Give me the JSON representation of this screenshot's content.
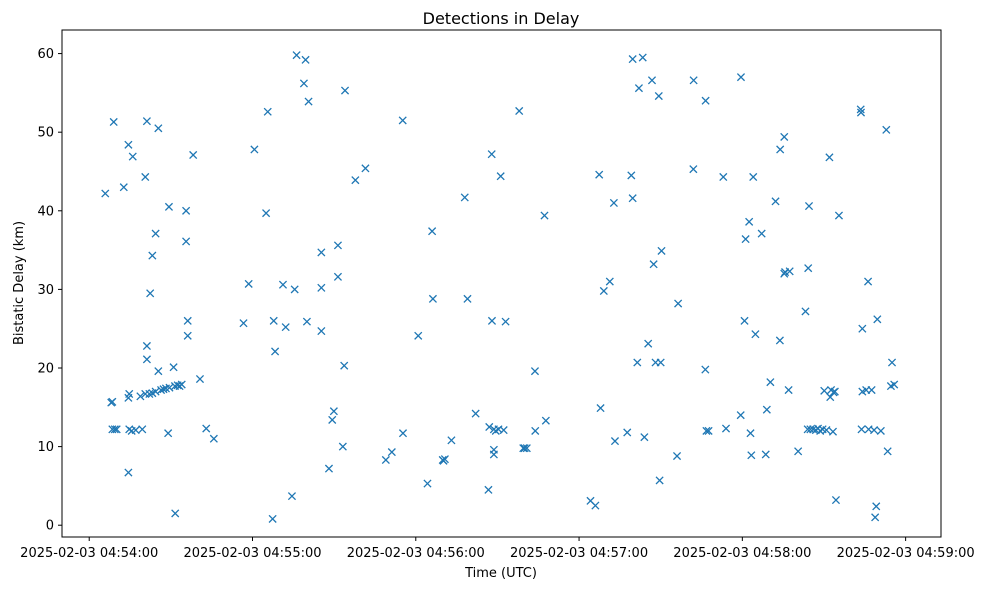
{
  "chart_data": {
    "type": "scatter",
    "title": "Detections in Delay",
    "xlabel": "Time (UTC)",
    "ylabel": "Bistatic Delay (km)",
    "marker": "x",
    "color": "#1f77b4",
    "xlim": [
      -10,
      313
    ],
    "ylim": [
      -1.5,
      63
    ],
    "x_unit": "seconds after 2025-02-03 04:54:00",
    "x_ticks": [
      {
        "value": 0,
        "label": "2025-02-03 04:54:00"
      },
      {
        "value": 60,
        "label": "2025-02-03 04:55:00"
      },
      {
        "value": 120,
        "label": "2025-02-03 04:56:00"
      },
      {
        "value": 180,
        "label": "2025-02-03 04:57:00"
      },
      {
        "value": 240,
        "label": "2025-02-03 04:58:00"
      },
      {
        "value": 300,
        "label": "2025-02-03 04:59:00"
      }
    ],
    "y_ticks": [
      {
        "value": 0,
        "label": "0"
      },
      {
        "value": 10,
        "label": "10"
      },
      {
        "value": 20,
        "label": "20"
      },
      {
        "value": 30,
        "label": "30"
      },
      {
        "value": 40,
        "label": "40"
      },
      {
        "value": 50,
        "label": "50"
      },
      {
        "value": 60,
        "label": "60"
      }
    ],
    "points": [
      [
        5.9,
        42.2
      ],
      [
        8.1,
        15.6
      ],
      [
        8.5,
        15.7
      ],
      [
        8.5,
        12.2
      ],
      [
        9.4,
        12.2
      ],
      [
        10.1,
        12.2
      ],
      [
        9.0,
        51.3
      ],
      [
        12.7,
        43.0
      ],
      [
        14.4,
        6.7
      ],
      [
        14.4,
        48.4
      ],
      [
        14.4,
        16.2
      ],
      [
        14.7,
        16.7
      ],
      [
        14.7,
        12.2
      ],
      [
        15.6,
        12.0
      ],
      [
        16.0,
        46.9
      ],
      [
        17.1,
        12.1
      ],
      [
        18.8,
        16.4
      ],
      [
        19.5,
        12.2
      ],
      [
        20.6,
        16.7
      ],
      [
        21.2,
        51.4
      ],
      [
        20.6,
        44.3
      ],
      [
        21.2,
        22.8
      ],
      [
        21.2,
        21.1
      ],
      [
        22.1,
        16.7
      ],
      [
        22.4,
        29.5
      ],
      [
        23.2,
        34.3
      ],
      [
        23.2,
        16.8
      ],
      [
        24.4,
        17.0
      ],
      [
        24.4,
        37.1
      ],
      [
        25.4,
        19.6
      ],
      [
        25.4,
        50.5
      ],
      [
        26.4,
        17.2
      ],
      [
        27.3,
        17.3
      ],
      [
        28.2,
        17.4
      ],
      [
        29.0,
        11.7
      ],
      [
        29.3,
        40.5
      ],
      [
        29.5,
        17.5
      ],
      [
        31.0,
        20.1
      ],
      [
        31.6,
        1.5
      ],
      [
        31.5,
        17.7
      ],
      [
        32.5,
        17.8
      ],
      [
        33.2,
        17.7
      ],
      [
        34.0,
        17.9
      ],
      [
        35.6,
        36.1
      ],
      [
        35.6,
        40.0
      ],
      [
        36.2,
        26.0
      ],
      [
        36.2,
        24.1
      ],
      [
        38.2,
        47.1
      ],
      [
        40.7,
        18.6
      ],
      [
        43.0,
        12.3
      ],
      [
        45.8,
        11.0
      ],
      [
        56.7,
        25.7
      ],
      [
        58.6,
        30.7
      ],
      [
        60.7,
        47.8
      ],
      [
        65.0,
        39.7
      ],
      [
        65.6,
        52.6
      ],
      [
        67.4,
        0.8
      ],
      [
        67.8,
        26.0
      ],
      [
        68.3,
        22.1
      ],
      [
        71.2,
        30.6
      ],
      [
        72.2,
        25.2
      ],
      [
        74.5,
        3.7
      ],
      [
        75.5,
        30.0
      ],
      [
        76.2,
        59.8
      ],
      [
        78.9,
        56.2
      ],
      [
        79.5,
        59.2
      ],
      [
        80.0,
        25.9
      ],
      [
        80.6,
        53.9
      ],
      [
        85.3,
        34.7
      ],
      [
        85.3,
        24.7
      ],
      [
        85.3,
        30.2
      ],
      [
        88.1,
        7.2
      ],
      [
        89.3,
        13.4
      ],
      [
        89.9,
        14.5
      ],
      [
        91.4,
        35.6
      ],
      [
        91.4,
        31.6
      ],
      [
        93.2,
        10.0
      ],
      [
        93.7,
        20.3
      ],
      [
        94.0,
        55.3
      ],
      [
        97.8,
        43.9
      ],
      [
        101.5,
        45.4
      ],
      [
        109.0,
        8.3
      ],
      [
        111.2,
        9.3
      ],
      [
        115.2,
        51.5
      ],
      [
        115.3,
        11.7
      ],
      [
        120.9,
        24.1
      ],
      [
        124.3,
        5.3
      ],
      [
        126.0,
        37.4
      ],
      [
        126.3,
        28.8
      ],
      [
        129.9,
        8.3
      ],
      [
        130.2,
        8.2
      ],
      [
        130.7,
        8.4
      ],
      [
        133.1,
        10.8
      ],
      [
        138.0,
        41.7
      ],
      [
        139.0,
        28.8
      ],
      [
        142.0,
        14.2
      ],
      [
        146.7,
        4.5
      ],
      [
        147.0,
        12.5
      ],
      [
        147.9,
        47.2
      ],
      [
        148.0,
        26.0
      ],
      [
        148.7,
        9.0
      ],
      [
        148.7,
        9.6
      ],
      [
        148.7,
        12.2
      ],
      [
        149.4,
        12.0
      ],
      [
        150.4,
        12.2
      ],
      [
        151.2,
        44.4
      ],
      [
        152.3,
        12.1
      ],
      [
        153.0,
        25.9
      ],
      [
        158.0,
        52.7
      ],
      [
        159.5,
        9.8
      ],
      [
        160.0,
        9.8
      ],
      [
        160.8,
        9.8
      ],
      [
        163.9,
        12.0
      ],
      [
        163.8,
        19.6
      ],
      [
        167.3,
        39.4
      ],
      [
        167.8,
        13.3
      ],
      [
        184.2,
        3.1
      ],
      [
        186.0,
        2.5
      ],
      [
        187.4,
        44.6
      ],
      [
        187.9,
        14.9
      ],
      [
        189.1,
        29.8
      ],
      [
        191.3,
        31.0
      ],
      [
        192.8,
        41.0
      ],
      [
        193.2,
        10.7
      ],
      [
        197.7,
        11.8
      ],
      [
        199.2,
        44.5
      ],
      [
        199.7,
        59.3
      ],
      [
        199.7,
        41.6
      ],
      [
        201.4,
        20.7
      ],
      [
        202.0,
        55.6
      ],
      [
        203.4,
        59.5
      ],
      [
        204.0,
        11.2
      ],
      [
        205.4,
        23.1
      ],
      [
        206.8,
        56.6
      ],
      [
        207.4,
        33.2
      ],
      [
        208.1,
        20.7
      ],
      [
        209.3,
        54.6
      ],
      [
        209.6,
        5.7
      ],
      [
        210.0,
        20.7
      ],
      [
        210.3,
        34.9
      ],
      [
        216.4,
        28.2
      ],
      [
        216.0,
        8.8
      ],
      [
        222.1,
        56.6
      ],
      [
        222.0,
        45.3
      ],
      [
        226.4,
        19.8
      ],
      [
        226.5,
        54.0
      ],
      [
        226.8,
        12.0
      ],
      [
        227.6,
        12.0
      ],
      [
        233.0,
        44.3
      ],
      [
        234.0,
        12.3
      ],
      [
        239.5,
        57.0
      ],
      [
        239.4,
        14.0
      ],
      [
        240.8,
        26.0
      ],
      [
        241.2,
        36.4
      ],
      [
        242.5,
        38.6
      ],
      [
        243.0,
        11.7
      ],
      [
        243.3,
        8.9
      ],
      [
        244.0,
        44.3
      ],
      [
        244.8,
        24.3
      ],
      [
        247.1,
        37.1
      ],
      [
        248.6,
        9.0
      ],
      [
        249.0,
        14.7
      ],
      [
        250.3,
        18.2
      ],
      [
        252.2,
        41.2
      ],
      [
        253.9,
        47.8
      ],
      [
        253.8,
        23.5
      ],
      [
        255.4,
        32.0
      ],
      [
        255.4,
        49.4
      ],
      [
        255.7,
        32.2
      ],
      [
        257.0,
        17.2
      ],
      [
        257.4,
        32.3
      ],
      [
        260.5,
        9.4
      ],
      [
        263.2,
        27.2
      ],
      [
        264.2,
        32.7
      ],
      [
        264.5,
        40.6
      ],
      [
        264.0,
        12.2
      ],
      [
        265.0,
        12.2
      ],
      [
        266.0,
        12.2
      ],
      [
        267.0,
        12.1
      ],
      [
        267.8,
        12.3
      ],
      [
        268.6,
        12.0
      ],
      [
        269.5,
        12.2
      ],
      [
        270.1,
        17.1
      ],
      [
        270.9,
        12.1
      ],
      [
        272.0,
        46.8
      ],
      [
        272.3,
        16.3
      ],
      [
        272.6,
        17.2
      ],
      [
        273.3,
        11.9
      ],
      [
        273.5,
        16.9
      ],
      [
        274.0,
        17.0
      ],
      [
        274.4,
        3.2
      ],
      [
        275.5,
        39.4
      ],
      [
        283.5,
        52.9
      ],
      [
        283.6,
        52.5
      ],
      [
        283.8,
        12.2
      ],
      [
        284.1,
        25.0
      ],
      [
        284.1,
        17.0
      ],
      [
        285.5,
        17.2
      ],
      [
        286.2,
        31.0
      ],
      [
        286.4,
        12.2
      ],
      [
        287.5,
        17.2
      ],
      [
        288.4,
        12.1
      ],
      [
        288.8,
        1.0
      ],
      [
        289.2,
        2.4
      ],
      [
        289.6,
        26.2
      ],
      [
        290.9,
        12.0
      ],
      [
        292.9,
        50.3
      ],
      [
        293.4,
        9.4
      ],
      [
        294.6,
        17.7
      ],
      [
        295.0,
        20.7
      ],
      [
        295.8,
        17.9
      ]
    ]
  }
}
